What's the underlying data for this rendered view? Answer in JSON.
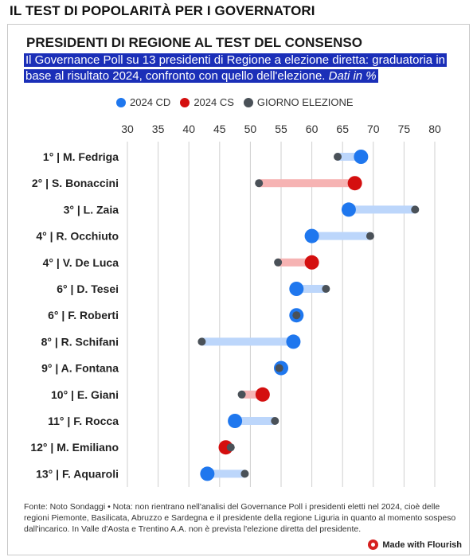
{
  "header": {
    "kicker": "IL TEST DI POPOLARITÀ PER I GOVERNATORI",
    "title": "PRESIDENTI DI REGIONE AL TEST DEL CONSENSO",
    "subtitle_main": "Il Governance Poll su 13 presidenti di Regione a elezione diretta: graduatoria in base al risultato 2024, confronto con quello dell'elezione. ",
    "subtitle_italic": "Dati in %"
  },
  "legend": [
    {
      "label": "2024 CD",
      "color": "#1f77ee"
    },
    {
      "label": "2024 CS",
      "color": "#d40f0f"
    },
    {
      "label": "GIORNO ELEZIONE",
      "color": "#4a5158"
    }
  ],
  "colors": {
    "cd": "#1f77ee",
    "cs": "#d40f0f",
    "election": "#4a5158",
    "bar_cd": "#bcd6fb",
    "bar_cs": "#f6b3b3",
    "grid": "#cfcfcf"
  },
  "chart_data": {
    "type": "dot-range",
    "xlim": [
      30,
      80
    ],
    "xticks": [
      30,
      35,
      40,
      45,
      50,
      55,
      60,
      65,
      70,
      75,
      80
    ],
    "grid": true,
    "legend_position": "top",
    "rows": [
      {
        "label": "1° | M. Fedriga",
        "party": "cd",
        "value_2024": 68.0,
        "election": 64.2
      },
      {
        "label": "2° | S. Bonaccini",
        "party": "cs",
        "value_2024": 67.0,
        "election": 51.4
      },
      {
        "label": "3° | L. Zaia",
        "party": "cd",
        "value_2024": 66.0,
        "election": 76.8
      },
      {
        "label": "4° | R. Occhiuto",
        "party": "cd",
        "value_2024": 60.0,
        "election": 69.5
      },
      {
        "label": "4° | V. De Luca",
        "party": "cs",
        "value_2024": 60.0,
        "election": 54.5
      },
      {
        "label": "6° | D. Tesei",
        "party": "cd",
        "value_2024": 57.5,
        "election": 62.3
      },
      {
        "label": "6° | F. Roberti",
        "party": "cd",
        "value_2024": 57.5,
        "election": 57.5
      },
      {
        "label": "8° | R. Schifani",
        "party": "cd",
        "value_2024": 57.0,
        "election": 42.1
      },
      {
        "label": "9° | A. Fontana",
        "party": "cd",
        "value_2024": 55.0,
        "election": 54.7
      },
      {
        "label": "10° | E. Giani",
        "party": "cs",
        "value_2024": 52.0,
        "election": 48.6
      },
      {
        "label": "11° | F. Rocca",
        "party": "cd",
        "value_2024": 47.5,
        "election": 54.0
      },
      {
        "label": "12° | M. Emiliano",
        "party": "cs",
        "value_2024": 46.0,
        "election": 46.8
      },
      {
        "label": "13° | F. Aquaroli",
        "party": "cd",
        "value_2024": 43.0,
        "election": 49.1
      }
    ]
  },
  "footer": {
    "note": "Fonte: Noto Sondaggi • Nota: non rientrano nell'analisi del Governance Poll i presidenti eletti nel 2024, cioè delle regioni Piemonte, Basilicata, Abruzzo e Sardegna e il presidente della regione Liguria in quanto al momento sospeso dall'incarico. In Valle d'Aosta e Trentino A.A. non è prevista l'elezione diretta del presidente.",
    "brand": "Made with Flourish"
  }
}
